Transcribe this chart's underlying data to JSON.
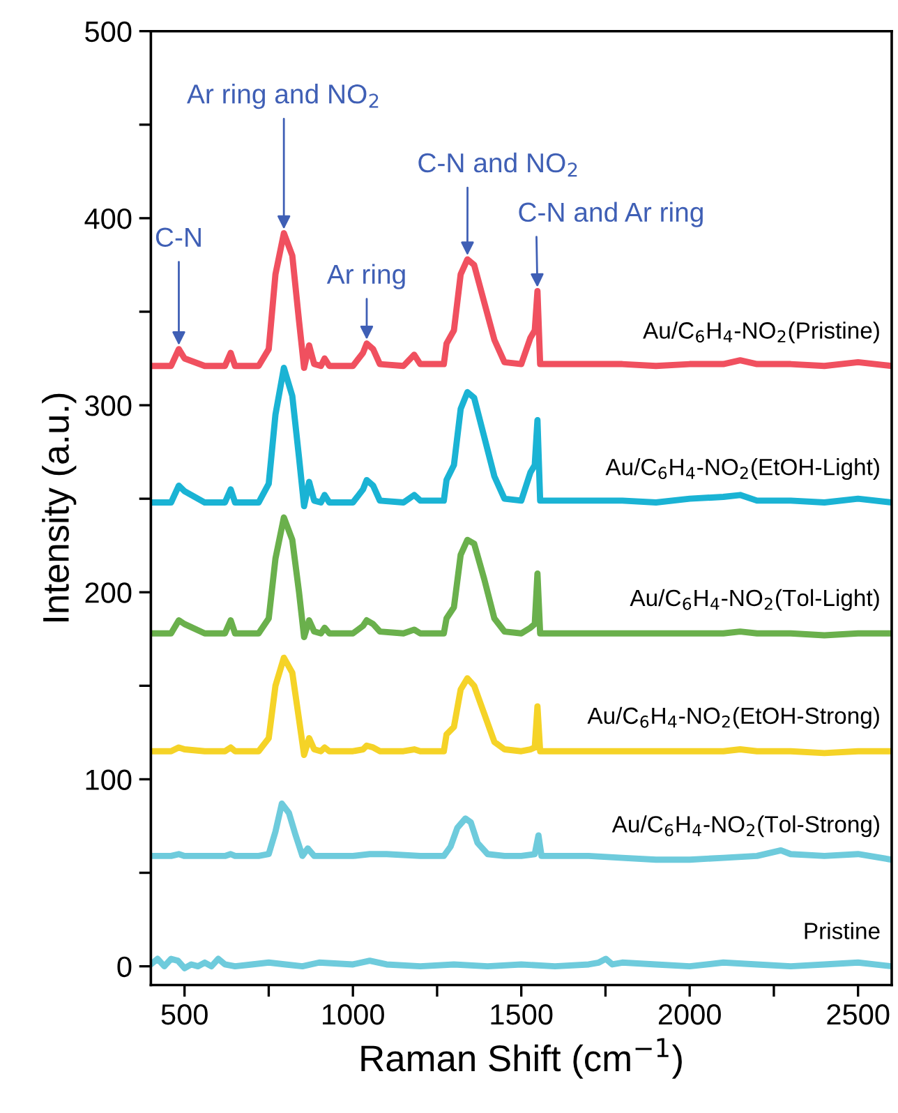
{
  "chart_data": {
    "type": "line",
    "xlabel": "Raman Shift (cm$^{−1}$)",
    "ylabel": "Intensity (a.u.)",
    "xlim": [
      400,
      2600
    ],
    "ylim": [
      -10,
      500
    ],
    "xticks": [
      500,
      {
        "value": 750,
        "label": null
      },
      1000,
      {
        "value": 1250,
        "label": null
      },
      1500,
      {
        "value": 1750,
        "label": null
      },
      2000,
      {
        "value": 2250,
        "label": null
      },
      2500
    ],
    "yticks": [
      0,
      {
        "value": 50,
        "label": null
      },
      100,
      {
        "value": 150,
        "label": null
      },
      200,
      {
        "value": 250,
        "label": null
      },
      300,
      {
        "value": 350,
        "label": null
      },
      400,
      {
        "value": 450,
        "label": null
      },
      500
    ],
    "grid": false,
    "legend": false,
    "marker": "none",
    "line_style": "solid",
    "annotations": [
      {
        "text": "C-N",
        "x": 483,
        "y": 330
      },
      {
        "text": "Ar ring and NO$_{2}$",
        "x": 795,
        "y": 392
      },
      {
        "text": "Ar ring",
        "x": 1041,
        "y": 333
      },
      {
        "text": "C-N and NO$_{2}$",
        "x": 1340,
        "y": 378
      },
      {
        "text": "C-N and Ar ring",
        "x": 1548,
        "y": 361
      }
    ],
    "series": [
      {
        "name": "Au/C$_{6}$H$_{4}$-NO$_{2}$(Pristine)",
        "color": "#f0505f",
        "x": [
          400,
          460,
          483,
          500,
          560,
          620,
          637,
          650,
          720,
          750,
          770,
          795,
          820,
          840,
          855,
          870,
          885,
          905,
          916,
          930,
          1000,
          1030,
          1041,
          1060,
          1080,
          1150,
          1182,
          1200,
          1240,
          1270,
          1278,
          1300,
          1320,
          1340,
          1360,
          1390,
          1420,
          1450,
          1500,
          1527,
          1540,
          1548,
          1556,
          1570,
          1700,
          1800,
          1900,
          2000,
          2100,
          2150,
          2200,
          2300,
          2400,
          2500,
          2600
        ],
        "values": [
          321,
          321,
          330,
          325,
          321,
          321,
          328,
          321,
          321,
          330,
          370,
          392,
          380,
          345,
          320,
          332,
          322,
          321,
          325,
          321,
          321,
          328,
          333,
          330,
          322,
          321,
          327,
          322,
          322,
          322,
          333,
          340,
          370,
          378,
          375,
          355,
          335,
          323,
          322,
          336,
          340,
          361,
          322,
          322,
          322,
          322,
          321,
          322,
          322,
          324,
          322,
          322,
          321,
          323,
          321
        ]
      },
      {
        "name": "Au/C$_{6}$H$_{4}$-NO$_{2}$(EtOH-Light)",
        "color": "#1ab3d4",
        "x": [
          400,
          460,
          483,
          500,
          560,
          620,
          637,
          650,
          720,
          750,
          770,
          795,
          820,
          840,
          855,
          870,
          885,
          905,
          916,
          930,
          1000,
          1030,
          1041,
          1060,
          1080,
          1150,
          1182,
          1200,
          1240,
          1270,
          1278,
          1300,
          1320,
          1340,
          1360,
          1390,
          1420,
          1450,
          1500,
          1527,
          1540,
          1548,
          1556,
          1570,
          1700,
          1800,
          1900,
          2000,
          2100,
          2150,
          2200,
          2300,
          2400,
          2500,
          2600
        ],
        "values": [
          248,
          248,
          257,
          254,
          248,
          248,
          255,
          248,
          248,
          258,
          295,
          320,
          305,
          272,
          246,
          259,
          249,
          248,
          252,
          248,
          248,
          255,
          260,
          257,
          249,
          248,
          252,
          249,
          249,
          249,
          260,
          268,
          298,
          307,
          304,
          283,
          262,
          250,
          249,
          264,
          268,
          292,
          249,
          249,
          249,
          249,
          248,
          250,
          251,
          252,
          249,
          249,
          248,
          250,
          248
        ]
      },
      {
        "name": "Au/C$_{6}$H$_{4}$-NO$_{2}$(Tol-Light)",
        "color": "#6ab04c",
        "x": [
          400,
          460,
          483,
          500,
          560,
          620,
          637,
          650,
          720,
          750,
          770,
          795,
          820,
          840,
          855,
          870,
          885,
          905,
          916,
          930,
          1000,
          1030,
          1041,
          1060,
          1080,
          1150,
          1182,
          1200,
          1240,
          1270,
          1278,
          1300,
          1320,
          1340,
          1360,
          1390,
          1420,
          1450,
          1500,
          1527,
          1540,
          1548,
          1556,
          1570,
          1700,
          1800,
          1900,
          2000,
          2100,
          2150,
          2200,
          2300,
          2400,
          2500,
          2600
        ],
        "values": [
          178,
          178,
          185,
          183,
          178,
          178,
          185,
          178,
          178,
          186,
          218,
          240,
          228,
          200,
          176,
          185,
          179,
          178,
          181,
          178,
          178,
          182,
          185,
          183,
          179,
          178,
          180,
          178,
          178,
          178,
          186,
          192,
          220,
          228,
          226,
          207,
          186,
          179,
          178,
          181,
          183,
          210,
          178,
          178,
          178,
          178,
          178,
          178,
          178,
          179,
          178,
          178,
          177,
          178,
          178
        ]
      },
      {
        "name": "Au/C$_{6}$H$_{4}$-NO$_{2}$(EtOH-Strong)",
        "color": "#f5d327",
        "x": [
          400,
          460,
          483,
          500,
          560,
          620,
          637,
          650,
          720,
          750,
          770,
          795,
          820,
          840,
          855,
          870,
          885,
          905,
          916,
          930,
          1000,
          1030,
          1041,
          1060,
          1080,
          1150,
          1182,
          1200,
          1240,
          1270,
          1278,
          1300,
          1320,
          1340,
          1360,
          1390,
          1420,
          1450,
          1500,
          1527,
          1540,
          1548,
          1556,
          1570,
          1700,
          1800,
          1900,
          2000,
          2100,
          2150,
          2200,
          2300,
          2400,
          2500,
          2600
        ],
        "values": [
          115,
          115,
          117,
          116,
          115,
          115,
          117,
          115,
          115,
          122,
          150,
          165,
          157,
          132,
          113,
          122,
          116,
          115,
          117,
          115,
          115,
          116,
          118,
          117,
          115,
          115,
          116,
          115,
          115,
          115,
          124,
          128,
          148,
          154,
          150,
          135,
          120,
          116,
          115,
          116,
          117,
          139,
          115,
          115,
          115,
          115,
          115,
          115,
          115,
          116,
          115,
          115,
          114,
          115,
          115
        ]
      },
      {
        "name": "Au/C$_{6}$H$_{4}$-NO$_{2}$(Tol-Strong)",
        "color": "#6ecbdc",
        "x": [
          400,
          460,
          483,
          500,
          560,
          620,
          637,
          650,
          720,
          750,
          770,
          789,
          810,
          830,
          850,
          866,
          885,
          905,
          1000,
          1050,
          1100,
          1200,
          1270,
          1290,
          1310,
          1334,
          1350,
          1370,
          1400,
          1450,
          1500,
          1540,
          1551,
          1560,
          1700,
          1800,
          1900,
          2000,
          2100,
          2200,
          2271,
          2300,
          2400,
          2500,
          2600
        ],
        "values": [
          59,
          59,
          60,
          59,
          59,
          59,
          60,
          59,
          59,
          60,
          72,
          87,
          82,
          70,
          59,
          63,
          59,
          59,
          59,
          60,
          60,
          59,
          59,
          64,
          74,
          79,
          77,
          66,
          60,
          59,
          59,
          60,
          70,
          59,
          59,
          58,
          57,
          57,
          58,
          59,
          62,
          60,
          59,
          60,
          57
        ]
      },
      {
        "name": "Pristine",
        "color": "#6ecbdc",
        "x": [
          400,
          420,
          440,
          460,
          480,
          500,
          520,
          540,
          560,
          580,
          600,
          620,
          650,
          700,
          750,
          800,
          850,
          900,
          1000,
          1050,
          1100,
          1200,
          1300,
          1400,
          1500,
          1600,
          1700,
          1730,
          1751,
          1770,
          1800,
          1900,
          2000,
          2100,
          2200,
          2300,
          2400,
          2500,
          2600
        ],
        "values": [
          1,
          4,
          0,
          4,
          3,
          -1,
          1,
          0,
          2,
          0,
          4,
          1,
          0,
          1,
          2,
          1,
          0,
          2,
          1,
          3,
          1,
          0,
          1,
          0,
          1,
          0,
          1,
          2,
          4,
          1,
          2,
          1,
          0,
          2,
          1,
          0,
          1,
          2,
          0
        ]
      }
    ]
  }
}
